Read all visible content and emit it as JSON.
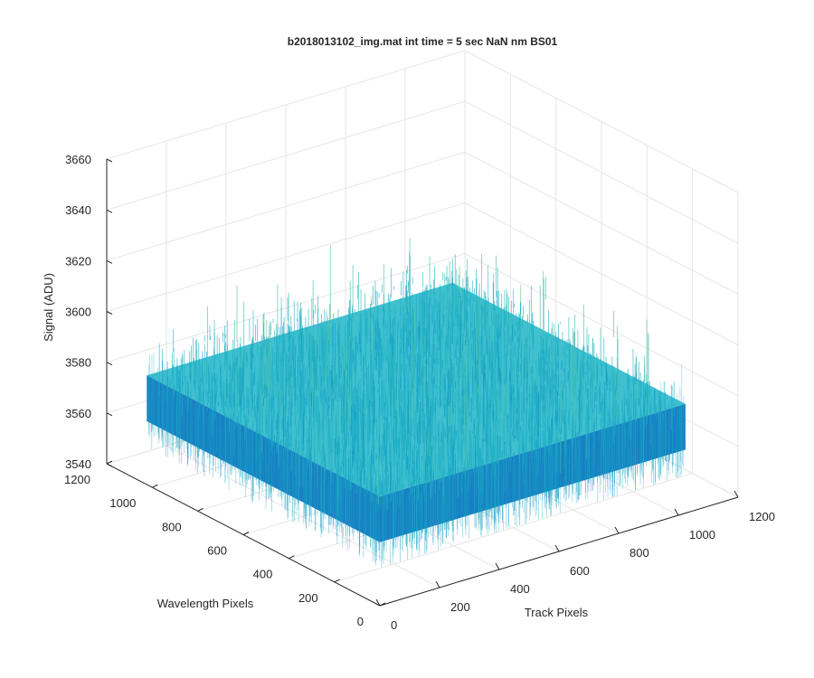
{
  "chart_data": {
    "type": "surface",
    "title": "b2018013102_img.mat int time = 5 sec  NaN nm BS01",
    "xlabel": "Track Pixels",
    "ylabel": "Wavelength Pixels",
    "zlabel": "Signal (ADU)",
    "xlim": [
      0,
      1200
    ],
    "ylim": [
      0,
      1200
    ],
    "zlim": [
      3540,
      3660
    ],
    "xticks": [
      "0",
      "200",
      "400",
      "600",
      "800",
      "1000",
      "1200"
    ],
    "yticks": [
      "0",
      "200",
      "400",
      "600",
      "800",
      "1000",
      "1200"
    ],
    "zticks": [
      "3540",
      "3560",
      "3580",
      "3600",
      "3620",
      "3640",
      "3660"
    ],
    "grid": true,
    "colormap": "parula",
    "surface": {
      "x_range": [
        0,
        1024
      ],
      "y_range": [
        0,
        1024
      ],
      "mean_signal": 3583,
      "noise_min": 3555,
      "noise_max": 3635
    }
  },
  "colors": {
    "surface_low": "#0072bd",
    "surface_mid": "#1fb5c8",
    "surface_high": "#a6d34f",
    "axis": "#262626",
    "grid": "#e6e6e6"
  }
}
